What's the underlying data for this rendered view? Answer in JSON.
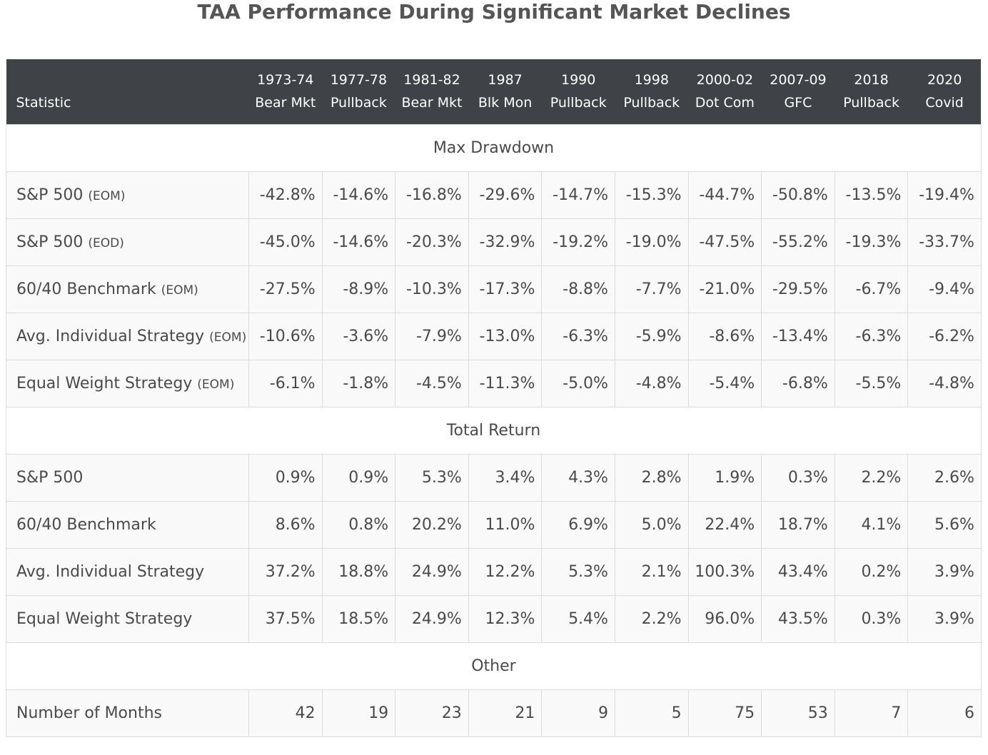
{
  "title": "TAA Performance During Significant Market Declines",
  "header": {
    "statistic": "Statistic",
    "periods": [
      {
        "year": "1973-74",
        "name": "Bear Mkt"
      },
      {
        "year": "1977-78",
        "name": "Pullback"
      },
      {
        "year": "1981-82",
        "name": "Bear Mkt"
      },
      {
        "year": "1987",
        "name": "Blk Mon"
      },
      {
        "year": "1990",
        "name": "Pullback"
      },
      {
        "year": "1998",
        "name": "Pullback"
      },
      {
        "year": "2000-02",
        "name": "Dot Com"
      },
      {
        "year": "2007-09",
        "name": "GFC"
      },
      {
        "year": "2018",
        "name": "Pullback"
      },
      {
        "year": "2020",
        "name": "Covid"
      }
    ]
  },
  "sections": [
    {
      "title": "Max Drawdown",
      "rows": [
        {
          "label": "S&P 500",
          "suffix": "(EOM)",
          "values": [
            "-42.8%",
            "-14.6%",
            "-16.8%",
            "-29.6%",
            "-14.7%",
            "-15.3%",
            "-44.7%",
            "-50.8%",
            "-13.5%",
            "-19.4%"
          ]
        },
        {
          "label": "S&P 500",
          "suffix": "(EOD)",
          "values": [
            "-45.0%",
            "-14.6%",
            "-20.3%",
            "-32.9%",
            "-19.2%",
            "-19.0%",
            "-47.5%",
            "-55.2%",
            "-19.3%",
            "-33.7%"
          ]
        },
        {
          "label": "60/40 Benchmark",
          "suffix": "(EOM)",
          "values": [
            "-27.5%",
            "-8.9%",
            "-10.3%",
            "-17.3%",
            "-8.8%",
            "-7.7%",
            "-21.0%",
            "-29.5%",
            "-6.7%",
            "-9.4%"
          ]
        },
        {
          "label": "Avg. Individual Strategy",
          "suffix": "(EOM)",
          "values": [
            "-10.6%",
            "-3.6%",
            "-7.9%",
            "-13.0%",
            "-6.3%",
            "-5.9%",
            "-8.6%",
            "-13.4%",
            "-6.3%",
            "-6.2%"
          ]
        },
        {
          "label": "Equal Weight Strategy",
          "suffix": "(EOM)",
          "values": [
            "-6.1%",
            "-1.8%",
            "-4.5%",
            "-11.3%",
            "-5.0%",
            "-4.8%",
            "-5.4%",
            "-6.8%",
            "-5.5%",
            "-4.8%"
          ]
        }
      ]
    },
    {
      "title": "Total Return",
      "rows": [
        {
          "label": "S&P 500",
          "suffix": "",
          "values": [
            "0.9%",
            "0.9%",
            "5.3%",
            "3.4%",
            "4.3%",
            "2.8%",
            "1.9%",
            "0.3%",
            "2.2%",
            "2.6%"
          ]
        },
        {
          "label": "60/40 Benchmark",
          "suffix": "",
          "values": [
            "8.6%",
            "0.8%",
            "20.2%",
            "11.0%",
            "6.9%",
            "5.0%",
            "22.4%",
            "18.7%",
            "4.1%",
            "5.6%"
          ]
        },
        {
          "label": "Avg. Individual Strategy",
          "suffix": "",
          "values": [
            "37.2%",
            "18.8%",
            "24.9%",
            "12.2%",
            "5.3%",
            "2.1%",
            "100.3%",
            "43.4%",
            "0.2%",
            "3.9%"
          ]
        },
        {
          "label": "Equal Weight Strategy",
          "suffix": "",
          "values": [
            "37.5%",
            "18.5%",
            "24.9%",
            "12.3%",
            "5.4%",
            "2.2%",
            "96.0%",
            "43.5%",
            "0.3%",
            "3.9%"
          ]
        }
      ]
    },
    {
      "title": "Other",
      "rows": [
        {
          "label": "Number of Months",
          "suffix": "",
          "values": [
            "42",
            "19",
            "23",
            "21",
            "9",
            "5",
            "75",
            "53",
            "7",
            "6"
          ]
        }
      ]
    }
  ]
}
